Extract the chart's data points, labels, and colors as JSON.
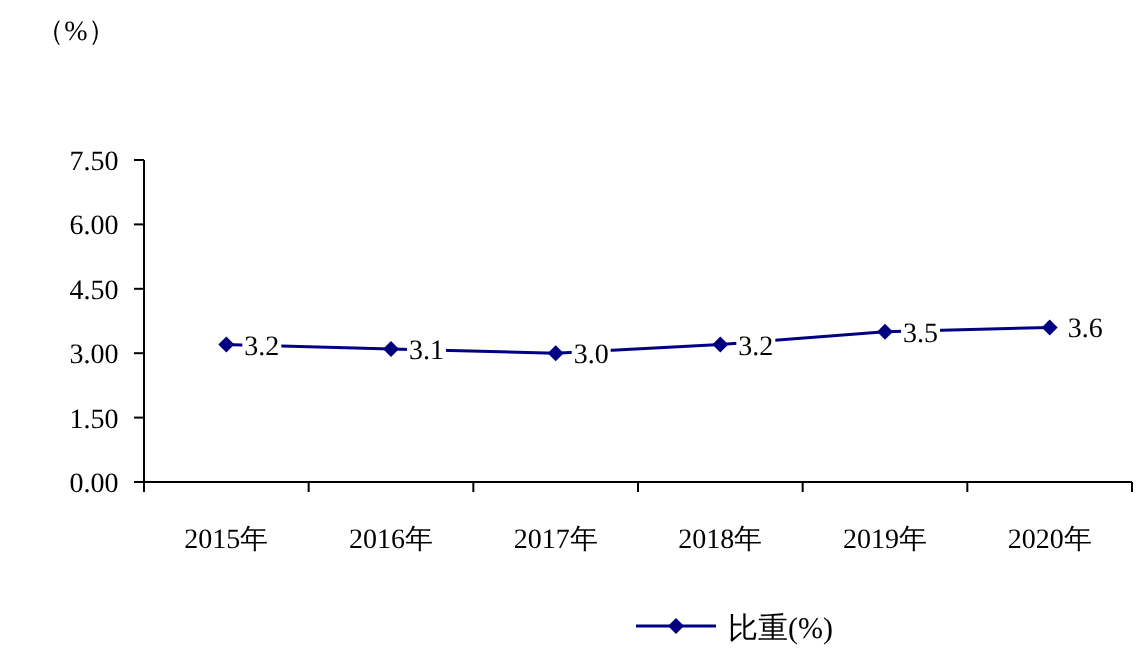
{
  "chart_data": {
    "type": "line",
    "ylabel": "（%）",
    "categories": [
      "2015年",
      "2016年",
      "2017年",
      "2018年",
      "2019年",
      "2020年"
    ],
    "series": [
      {
        "name": "比重(%)",
        "color": "#000080",
        "values": [
          3.2,
          3.1,
          3.0,
          3.2,
          3.5,
          3.6
        ],
        "value_labels": [
          "3.2",
          "3.1",
          "3.0",
          "3.2",
          "3.5",
          "3.6"
        ]
      }
    ],
    "ylim": [
      0,
      7.5
    ],
    "yticks": [
      {
        "value": 0,
        "label": "0.00"
      },
      {
        "value": 1.5,
        "label": "1.50"
      },
      {
        "value": 3,
        "label": "3.00"
      },
      {
        "value": 4.5,
        "label": "4.50"
      },
      {
        "value": 6,
        "label": "6.00"
      },
      {
        "value": 7.5,
        "label": "7.50"
      }
    ],
    "marker": "diamond",
    "legend": "bottom",
    "grid": false
  }
}
